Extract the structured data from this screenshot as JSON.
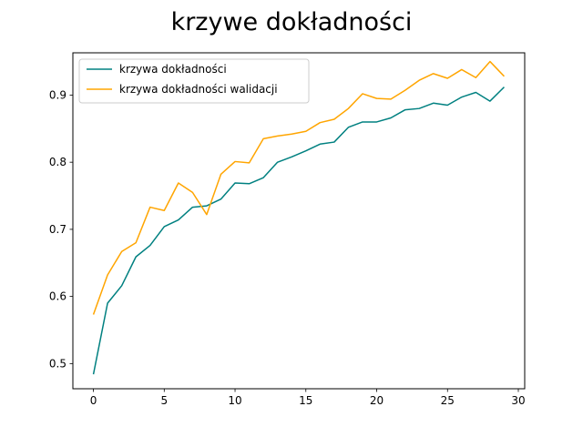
{
  "chart_data": {
    "type": "line",
    "title": "krzywe dokładności",
    "xlabel": "",
    "ylabel": "",
    "xlim": [
      -1.45,
      30.45
    ],
    "ylim": [
      0.4625,
      0.963
    ],
    "xticks": [
      0,
      5,
      10,
      15,
      20,
      25,
      30
    ],
    "yticks": [
      0.5,
      0.6,
      0.7,
      0.8,
      0.9
    ],
    "grid": false,
    "legend_position": "upper-left",
    "x": [
      0,
      1,
      2,
      3,
      4,
      5,
      6,
      7,
      8,
      9,
      10,
      11,
      12,
      13,
      14,
      15,
      16,
      17,
      18,
      19,
      20,
      21,
      22,
      23,
      24,
      25,
      26,
      27,
      28,
      29
    ],
    "series": [
      {
        "name": "krzywa dokładności",
        "color": "#008080",
        "values": [
          0.484,
          0.59,
          0.616,
          0.659,
          0.676,
          0.704,
          0.714,
          0.733,
          0.735,
          0.745,
          0.769,
          0.768,
          0.777,
          0.8,
          0.808,
          0.817,
          0.827,
          0.83,
          0.852,
          0.86,
          0.86,
          0.866,
          0.878,
          0.88,
          0.888,
          0.885,
          0.897,
          0.904,
          0.891,
          0.912
        ]
      },
      {
        "name": "krzywa dokładności walidacji",
        "color": "#ffa500",
        "values": [
          0.573,
          0.632,
          0.667,
          0.68,
          0.733,
          0.728,
          0.769,
          0.755,
          0.722,
          0.782,
          0.801,
          0.799,
          0.835,
          0.839,
          0.842,
          0.846,
          0.859,
          0.864,
          0.88,
          0.902,
          0.895,
          0.894,
          0.907,
          0.922,
          0.932,
          0.925,
          0.938,
          0.926,
          0.95,
          0.928
        ]
      }
    ]
  }
}
